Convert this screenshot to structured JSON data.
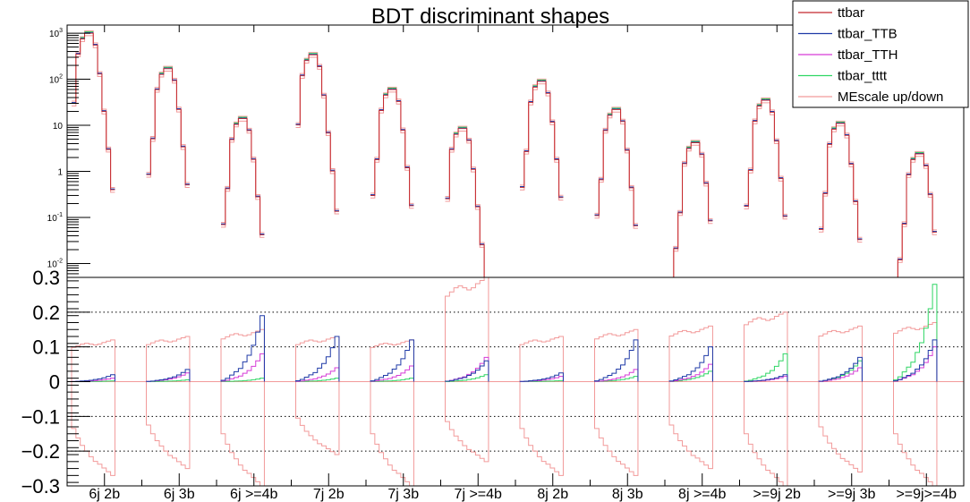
{
  "chart_data": {
    "type": "histogram",
    "title": "BDT discriminant shapes",
    "legend": {
      "placement": "top-right",
      "entries": [
        {
          "label": "ttbar",
          "color": "#c4282d"
        },
        {
          "label": "ttbar_TTB",
          "color": "#1f3aa7"
        },
        {
          "label": "ttbar_TTH",
          "color": "#d63bd6"
        },
        {
          "label": "ttbar_tttt",
          "color": "#2fd664"
        },
        {
          "label": "MEscale up/down",
          "color": "#f29a9a"
        }
      ]
    },
    "categories": [
      "6j 2b",
      "6j 3b",
      "6j >=4b",
      "7j 2b",
      "7j 3b",
      "7j >=4b",
      "8j 2b",
      "8j 3b",
      "8j >=4b",
      ">=9j 2b",
      ">=9j 3b",
      ">=9j>=4b"
    ],
    "top_panel": {
      "yscale": "log",
      "ylim": [
        0.005,
        1500
      ],
      "yticks": [
        {
          "value": 1000,
          "base": "10",
          "exp": "3"
        },
        {
          "value": 100,
          "base": "10",
          "exp": "2"
        },
        {
          "value": 10,
          "base": "10",
          "exp": ""
        },
        {
          "value": 1,
          "base": "1",
          "exp": ""
        },
        {
          "value": 0.1,
          "base": "10",
          "exp": "-1"
        },
        {
          "value": 0.01,
          "base": "10",
          "exp": "-2"
        }
      ],
      "region_peak": [
        1000,
        170,
        14,
        340,
        60,
        8.5,
        90,
        22,
        4.2,
        35,
        11,
        2.4
      ],
      "region_peak_bin": [
        3,
        4,
        4,
        3,
        4,
        3,
        4,
        4,
        5,
        4,
        4,
        5
      ]
    },
    "bottom_panel": {
      "ylim": [
        -0.3,
        0.3
      ],
      "yticks": [
        -0.3,
        -0.2,
        -0.1,
        0,
        0.1,
        0.2,
        0.3
      ],
      "ytick_labels": [
        "−0.3",
        "−0.2",
        "−0.1",
        "0",
        "0.1",
        "0.2",
        "0.3"
      ],
      "gridlines": [
        -0.2,
        -0.1,
        0.1,
        0.2
      ],
      "ttb_max": [
        0.02,
        0.035,
        0.19,
        0.13,
        0.12,
        0.06,
        0.025,
        0.12,
        0.1,
        0.02,
        0.07,
        0.12
      ],
      "tth_max": [
        0.01,
        0.025,
        0.08,
        0.04,
        0.045,
        0.07,
        0.015,
        0.035,
        0.05,
        0.015,
        0.04,
        0.1
      ],
      "tttt_max": [
        0.002,
        0.005,
        0.01,
        0.01,
        0.01,
        0.02,
        0.003,
        0.015,
        0.03,
        0.08,
        0.06,
        0.28
      ],
      "mescale_up": [
        0.12,
        0.13,
        0.15,
        0.13,
        0.12,
        0.3,
        0.13,
        0.15,
        0.16,
        0.2,
        0.16,
        0.17
      ],
      "mescale_down": [
        -0.27,
        -0.25,
        -0.3,
        -0.21,
        -0.3,
        -0.23,
        -0.27,
        -0.27,
        -0.25,
        -0.3,
        -0.26,
        -0.3
      ]
    }
  }
}
